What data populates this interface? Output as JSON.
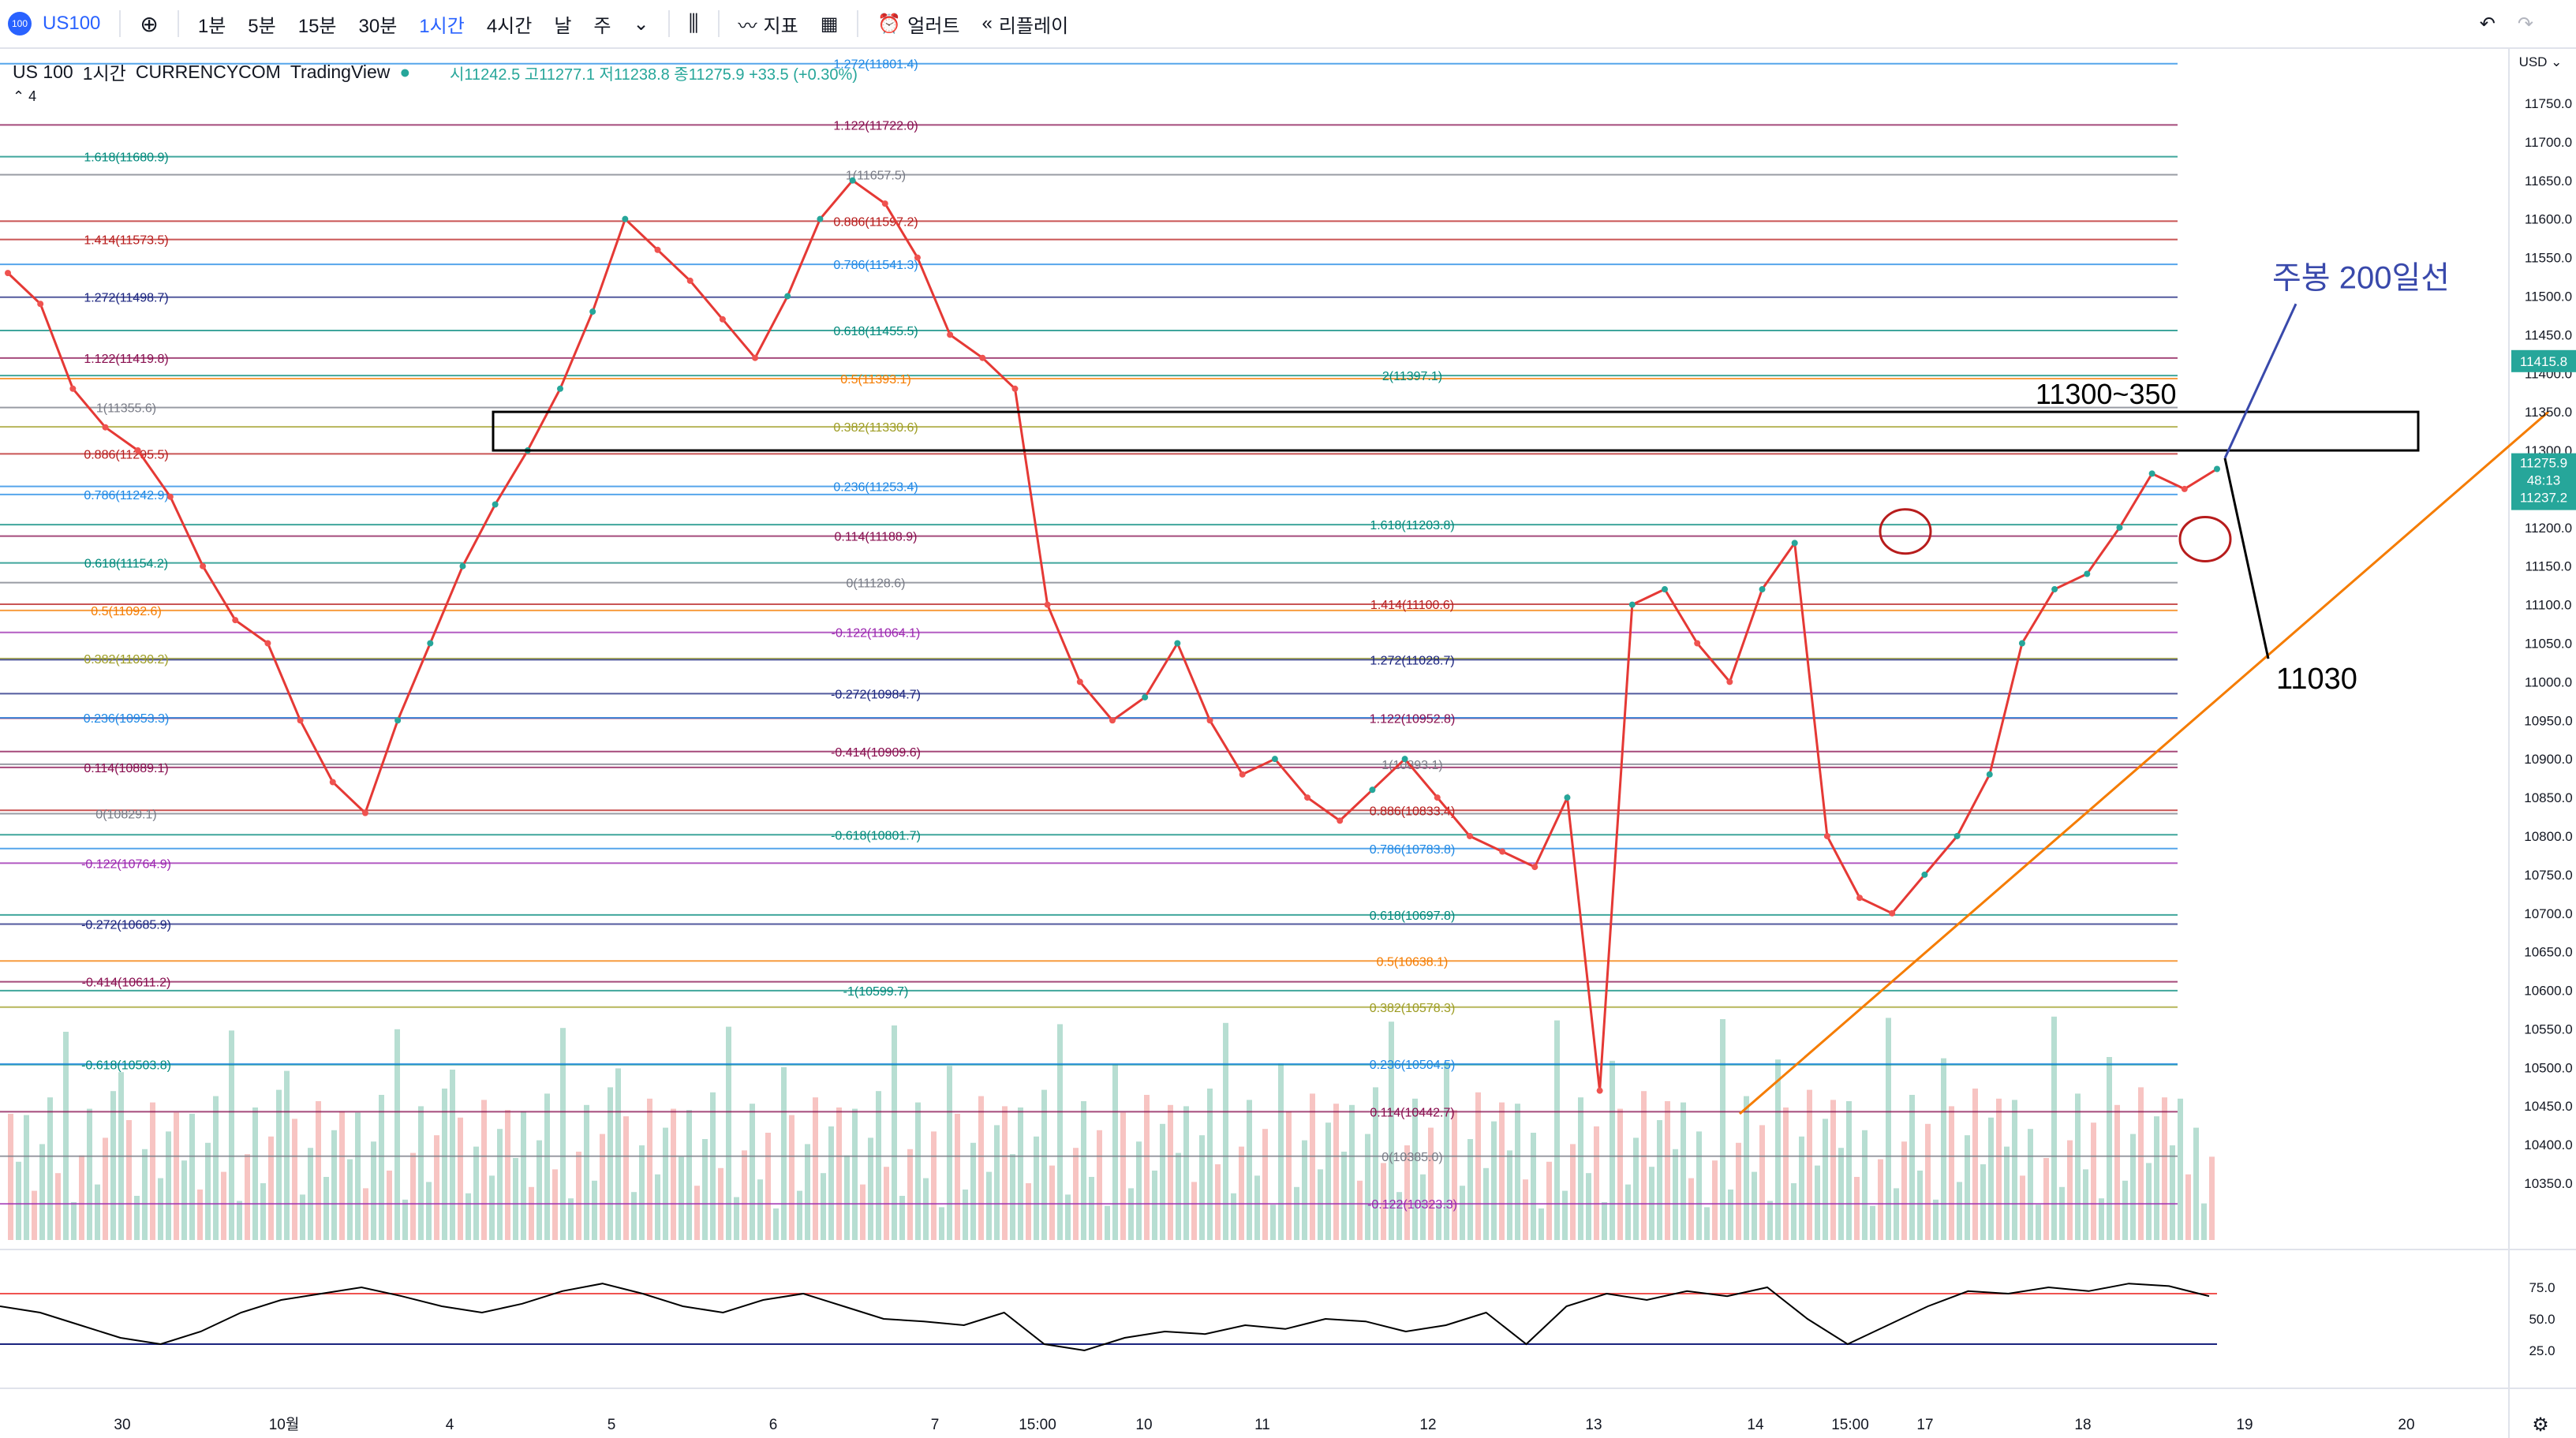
{
  "toolbar": {
    "symbol": "US100",
    "logo": "100",
    "timeframes": [
      "1분",
      "5분",
      "15분",
      "30분",
      "1시간",
      "4시간",
      "날",
      "주"
    ],
    "active_timeframe": "1시간",
    "indicators_label": "지표",
    "alerts_label": "얼러트",
    "replay_label": "리플레이"
  },
  "header": {
    "symbol": "US 100",
    "interval": "1시간",
    "exchange": "CURRENCYCOM",
    "source": "TradingView",
    "ohlc": "시11242.5 고11277.1 저11238.8 종11275.9 +33.5 (+0.30%)",
    "indicator_count": "4"
  },
  "chart_data": {
    "type": "line",
    "title": "",
    "ylim": [
      10300,
      11800
    ],
    "currency": "USD",
    "y_ticks": [
      10350,
      10400,
      10450,
      10500,
      10550,
      10600,
      10650,
      10700,
      10750,
      10800,
      10850,
      10900,
      10950,
      11000,
      11050,
      11100,
      11150,
      11200,
      11250,
      11300,
      11350,
      11400,
      11450,
      11500,
      11550,
      11600,
      11650,
      11700,
      11750
    ],
    "x_ticks": [
      "30",
      "10월",
      "4",
      "5",
      "6",
      "7",
      "15:00",
      "10",
      "11",
      "12",
      "13",
      "14",
      "15:00",
      "17",
      "18",
      "19",
      "20"
    ],
    "series": [
      {
        "values": [
          11530,
          11490,
          11380,
          11330,
          11300,
          11240,
          11150,
          11080,
          11050,
          10950,
          10870,
          10830,
          10950,
          11050,
          11150,
          11230,
          11300,
          11380,
          11480,
          11600,
          11560,
          11520,
          11470,
          11420,
          11500,
          11600,
          11650,
          11620,
          11550,
          11450,
          11420,
          11380,
          11100,
          11000,
          10950,
          10980,
          11050,
          10950,
          10880,
          10900,
          10850,
          10820,
          10860,
          10900,
          10850,
          10800,
          10780,
          10760,
          10850,
          10470,
          11100,
          11120,
          11050,
          11000,
          11120,
          11180,
          10800,
          10720,
          10700,
          10750,
          10800,
          10880,
          11050,
          11120,
          11140,
          11200,
          11270,
          11250,
          11276
        ]
      }
    ],
    "current_price": 11275.9,
    "timer": "48:13",
    "price_labels": [
      11415.8,
      11237.2
    ],
    "levels": [
      {
        "label": "1.272(11801.4)",
        "price": 11801.4,
        "color": "#1e88e5"
      },
      {
        "label": "1.122(11722.0)",
        "price": 11722.0,
        "color": "#880e4f"
      },
      {
        "label": "1.618(11680.9)",
        "price": 11680.9,
        "color": "#00897b"
      },
      {
        "label": "1(11657.5)",
        "price": 11657.5,
        "color": "#787b86"
      },
      {
        "label": "0.886(11597.2)",
        "price": 11597.2,
        "color": "#b71c1c"
      },
      {
        "label": "1.414(11573.5)",
        "price": 11573.5,
        "color": "#b71c1c"
      },
      {
        "label": "0.786(11541.3)",
        "price": 11541.3,
        "color": "#1e88e5"
      },
      {
        "label": "1.272(11498.7)",
        "price": 11498.7,
        "color": "#1a237e"
      },
      {
        "label": "0.618(11455.5)",
        "price": 11455.5,
        "color": "#00897b"
      },
      {
        "label": "1.122(11419.8)",
        "price": 11419.8,
        "color": "#880e4f"
      },
      {
        "label": "2(11397.1)",
        "price": 11397.1,
        "color": "#00897b"
      },
      {
        "label": "0.5(11393.1)",
        "price": 11393.1,
        "color": "#f57c00"
      },
      {
        "label": "1(11355.6)",
        "price": 11355.6,
        "color": "#787b86"
      },
      {
        "label": "0.382(11330.6)",
        "price": 11330.6,
        "color": "#9e9d24"
      },
      {
        "label": "0.886(11295.5)",
        "price": 11295.5,
        "color": "#b71c1c"
      },
      {
        "label": "0.236(11253.4)",
        "price": 11253.4,
        "color": "#1e88e5"
      },
      {
        "label": "0.786(11242.9)",
        "price": 11242.9,
        "color": "#1e88e5"
      },
      {
        "label": "1.618(11203.8)",
        "price": 11203.8,
        "color": "#00897b"
      },
      {
        "label": "0.114(11188.9)",
        "price": 11188.9,
        "color": "#880e4f"
      },
      {
        "label": "0.618(11154.2)",
        "price": 11154.2,
        "color": "#00897b"
      },
      {
        "label": "0(11128.6)",
        "price": 11128.6,
        "color": "#787b86"
      },
      {
        "label": "1.414(11100.6)",
        "price": 11100.6,
        "color": "#b71c1c"
      },
      {
        "label": "0.5(11092.6)",
        "price": 11092.6,
        "color": "#f57c00"
      },
      {
        "label": "-0.122(11064.1)",
        "price": 11064.1,
        "color": "#9c27b0"
      },
      {
        "label": "0.382(11030.2)",
        "price": 11030.2,
        "color": "#9e9d24"
      },
      {
        "label": "1.272(11028.7)",
        "price": 11028.7,
        "color": "#1a237e"
      },
      {
        "label": "-0.272(10984.7)",
        "price": 10984.7,
        "color": "#1a237e"
      },
      {
        "label": "1.122(10952.8)",
        "price": 10952.8,
        "color": "#880e4f"
      },
      {
        "label": "0.236(10953.3)",
        "price": 10953.3,
        "color": "#1e88e5"
      },
      {
        "label": "-0.414(10909.6)",
        "price": 10909.6,
        "color": "#880e4f"
      },
      {
        "label": "1(10893.1)",
        "price": 10893.1,
        "color": "#787b86"
      },
      {
        "label": "0.114(10889.1)",
        "price": 10889.1,
        "color": "#880e4f"
      },
      {
        "label": "0.886(10833.4)",
        "price": 10833.4,
        "color": "#b71c1c"
      },
      {
        "label": "0(10829.1)",
        "price": 10829.1,
        "color": "#787b86"
      },
      {
        "label": "-0.618(10801.7)",
        "price": 10801.7,
        "color": "#00897b"
      },
      {
        "label": "0.786(10783.8)",
        "price": 10783.8,
        "color": "#1e88e5"
      },
      {
        "label": "-0.122(10764.9)",
        "price": 10764.9,
        "color": "#9c27b0"
      },
      {
        "label": "0.618(10697.8)",
        "price": 10697.8,
        "color": "#00897b"
      },
      {
        "label": "-0.272(10685.9)",
        "price": 10685.9,
        "color": "#1a237e"
      },
      {
        "label": "0.5(10638.1)",
        "price": 10638.1,
        "color": "#f57c00"
      },
      {
        "label": "-0.414(10611.2)",
        "price": 10611.2,
        "color": "#880e4f"
      },
      {
        "label": "-1(10599.7)",
        "price": 10599.7,
        "color": "#00897b"
      },
      {
        "label": "0.382(10578.3)",
        "price": 10578.3,
        "color": "#9e9d24"
      },
      {
        "label": "-0.618(10503.8)",
        "price": 10503.8,
        "color": "#00897b"
      },
      {
        "label": "0.236(10504.5)",
        "price": 10504.5,
        "color": "#1e88e5"
      },
      {
        "label": "0.114(10442.7)",
        "price": 10442.7,
        "color": "#880e4f"
      },
      {
        "label": "0(10385.0)",
        "price": 10385.0,
        "color": "#787b86"
      },
      {
        "label": "-0.122(10323.3)",
        "price": 10323.3,
        "color": "#9c27b0"
      }
    ],
    "annotations": {
      "zone_label": "11300~350",
      "zone": [
        11300,
        11350
      ],
      "ma_label": "주봉 200일선",
      "target_label": "11030"
    },
    "rsi": {
      "ylim": [
        0,
        100
      ],
      "ticks": [
        75.0,
        50.0,
        25.0
      ],
      "values": [
        60,
        55,
        45,
        35,
        30,
        40,
        55,
        65,
        70,
        75,
        68,
        60,
        55,
        62,
        72,
        78,
        70,
        60,
        55,
        65,
        70,
        60,
        50,
        48,
        45,
        55,
        30,
        25,
        35,
        40,
        38,
        45,
        42,
        50,
        48,
        40,
        45,
        55,
        30,
        60,
        70,
        65,
        72,
        68,
        75,
        50,
        30,
        45,
        60,
        72,
        70,
        75,
        72,
        78,
        76,
        68
      ]
    },
    "colors": {
      "up": "#26a69a",
      "down": "#ef5350",
      "ma20": "#e53935",
      "ma50": "#1e3a8a",
      "ma100": "#f57c00",
      "ma200": "#000000",
      "trend": "#f57c00"
    }
  }
}
